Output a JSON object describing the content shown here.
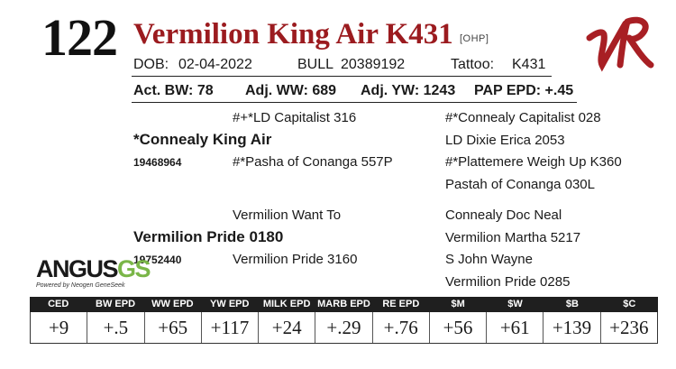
{
  "lot_number": "122",
  "animal_name": "Vermilion King Air K431",
  "tag": "[OHP]",
  "logo_text": "VR",
  "dob_label": "DOB:",
  "dob": "02-04-2022",
  "bull_label": "BULL",
  "registration": "20389192",
  "tattoo_label": "Tattoo:",
  "tattoo": "K431",
  "perf": {
    "act_bw": "Act. BW: 78",
    "adj_ww": "Adj. WW: 689",
    "adj_yw": "Adj. YW: 1243",
    "pap": "PAP EPD: +.45"
  },
  "pedigree": {
    "sire": "*Connealy King Air",
    "sire_reg": "19468964",
    "sire_sire": "#+*LD Capitalist 316",
    "sire_dam": "#*Pasha of Conanga 557P",
    "sss": "#*Connealy Capitalist 028",
    "ssd": "LD Dixie Erica 2053",
    "sds": "#*Plattemere Weigh Up K360",
    "sdd": "Pastah of Conanga 030L",
    "dam": "Vermilion Pride 0180",
    "dam_reg": "19752440",
    "dam_sire": "Vermilion Want To",
    "dam_dam": "Vermilion Pride 3160",
    "dss": "Connealy Doc Neal",
    "dsd": "Vermilion Martha 5217",
    "dds": "S John Wayne",
    "ddd": "Vermilion Pride 0285"
  },
  "brand": {
    "angus": "ANGUS",
    "gs": "GS",
    "powered": "Powered by Neogen GeneSeek"
  },
  "epd_headers": [
    "CED",
    "BW EPD",
    "WW EPD",
    "YW EPD",
    "MILK EPD",
    "MARB EPD",
    "RE EPD",
    "$M",
    "$W",
    "$B",
    "$C"
  ],
  "epd_values": [
    "+9",
    "+.5",
    "+65",
    "+117",
    "+24",
    "+.29",
    "+.76",
    "+56",
    "+61",
    "+139",
    "+236"
  ],
  "colors": {
    "name_red": "#9b1b1f",
    "logo_red": "#a81f24",
    "gs_green": "#7ab648",
    "header_bg": "#1f1f1f"
  }
}
